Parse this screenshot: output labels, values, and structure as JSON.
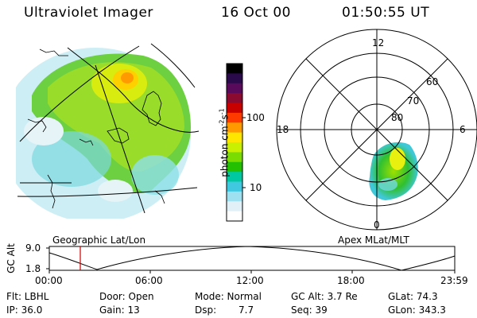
{
  "header": {
    "title": "Ultraviolet Imager",
    "date": "16 Oct 00",
    "time": "01:50:55 UT"
  },
  "colorbar": {
    "label": "photon cm",
    "label_sup1": "-2",
    "label_mid": "s",
    "label_sup2": "-1",
    "ticks": [
      "100",
      "10"
    ],
    "colors": [
      "#000000",
      "#2a0a4a",
      "#5a0a5a",
      "#8a0a30",
      "#c80000",
      "#ff3a00",
      "#ff9a00",
      "#ffe600",
      "#c8f000",
      "#7adc00",
      "#22c000",
      "#00c8a0",
      "#40c8e0",
      "#9ee0f0",
      "#e0f0f6",
      "#ffffff"
    ]
  },
  "map_labels": {
    "geo": "Geographic Lat/Lon",
    "apex": "Apex MLat/MLT"
  },
  "polar": {
    "mlt_labels": {
      "top": "12",
      "left": "18",
      "right": "6",
      "bottom": "0"
    },
    "lat_labels": [
      "60",
      "70",
      "80"
    ]
  },
  "altitude_plot": {
    "ylabel": "GC Alt",
    "yticks": [
      "9.0",
      "1.8"
    ],
    "xticks": [
      "00:00",
      "06:00",
      "12:00",
      "18:00",
      "23:59"
    ],
    "marker_time": "01:50:55"
  },
  "info": {
    "flt": "Flt: LBHL",
    "ip": "IP: 36.0",
    "door": "Door: Open",
    "gain": "Gain: 13",
    "mode": "Mode: Normal",
    "dsp_label": "Dsp:",
    "dsp_value": "7.7",
    "gcalt": "GC Alt: 3.7 Re",
    "seq": "Seq: 39",
    "glat": "GLat: 74.3",
    "glon": "GLon: 343.3"
  }
}
